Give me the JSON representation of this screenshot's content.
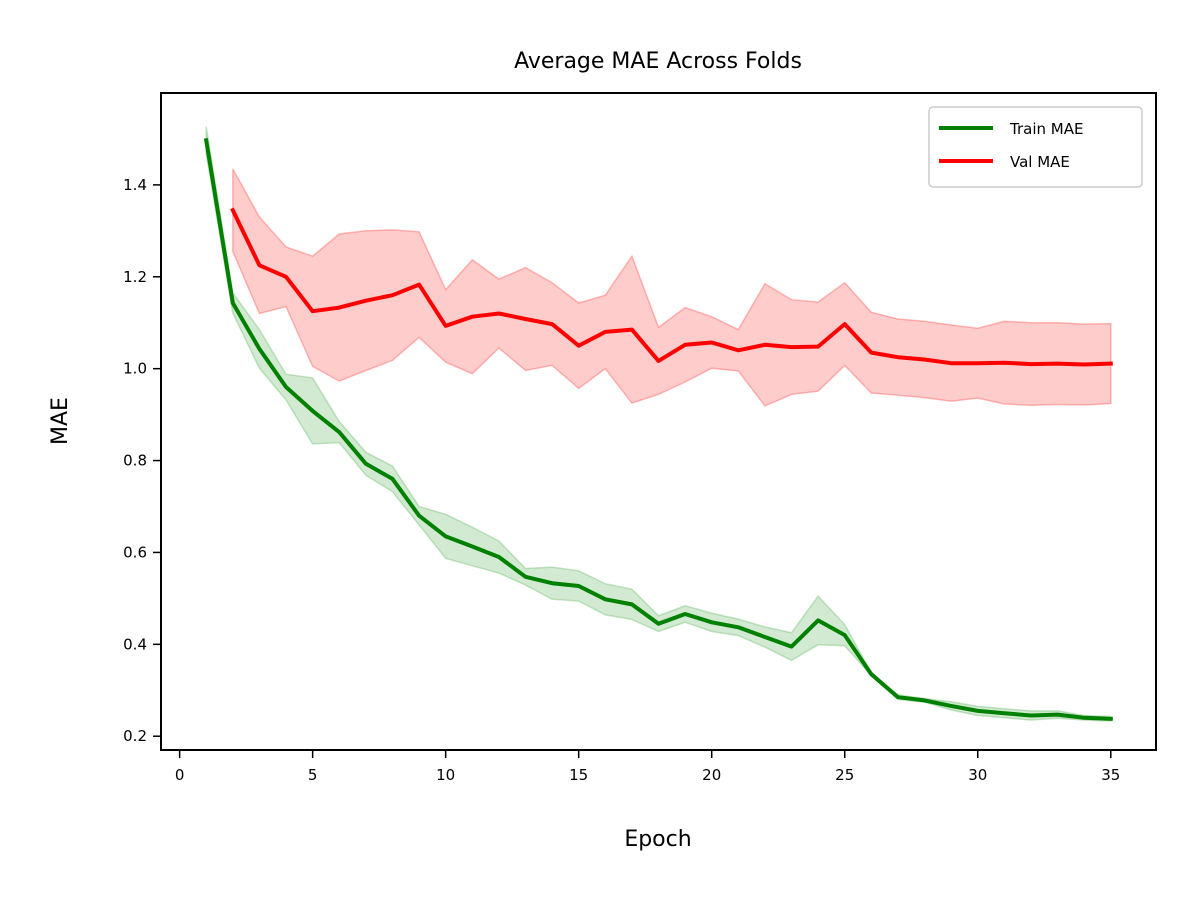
{
  "chart_data": {
    "type": "line",
    "title": "Average MAE Across Folds",
    "xlabel": "Epoch",
    "ylabel": "MAE",
    "xlim": [
      -0.7,
      36.7
    ],
    "ylim": [
      0.17,
      1.6
    ],
    "xticks": [
      0,
      5,
      10,
      15,
      20,
      25,
      30,
      35
    ],
    "yticks": [
      0.2,
      0.4,
      0.6,
      0.8,
      1.0,
      1.2,
      1.4
    ],
    "ytick_labels": [
      "0.2",
      "0.4",
      "0.6",
      "0.8",
      "1.0",
      "1.2",
      "1.4"
    ],
    "grid": false,
    "legend_position": "upper right",
    "series": [
      {
        "name": "Train MAE",
        "color": "#008000",
        "band_color": "#2ca02c",
        "x": [
          1,
          2,
          3,
          4,
          5,
          6,
          7,
          8,
          9,
          10,
          11,
          12,
          13,
          14,
          15,
          16,
          17,
          18,
          19,
          20,
          21,
          22,
          23,
          24,
          25,
          26,
          27,
          28,
          29,
          30,
          31,
          32,
          33,
          34,
          35
        ],
        "values": [
          1.497,
          1.143,
          1.043,
          0.96,
          0.908,
          0.862,
          0.793,
          0.76,
          0.68,
          0.635,
          0.613,
          0.59,
          0.547,
          0.533,
          0.527,
          0.498,
          0.487,
          0.445,
          0.466,
          0.448,
          0.437,
          0.416,
          0.395,
          0.452,
          0.42,
          0.335,
          0.285,
          0.278,
          0.266,
          0.255,
          0.25,
          0.245,
          0.247,
          0.24,
          0.238
        ],
        "upper": [
          1.527,
          1.165,
          1.085,
          0.988,
          0.98,
          0.885,
          0.818,
          0.788,
          0.7,
          0.683,
          0.655,
          0.625,
          0.565,
          0.568,
          0.56,
          0.532,
          0.52,
          0.462,
          0.484,
          0.468,
          0.455,
          0.438,
          0.425,
          0.505,
          0.443,
          0.338,
          0.29,
          0.282,
          0.275,
          0.265,
          0.26,
          0.255,
          0.255,
          0.245,
          0.243
        ],
        "lower": [
          1.467,
          1.121,
          1.001,
          0.932,
          0.836,
          0.839,
          0.768,
          0.732,
          0.66,
          0.587,
          0.571,
          0.555,
          0.529,
          0.498,
          0.494,
          0.464,
          0.454,
          0.428,
          0.448,
          0.428,
          0.419,
          0.394,
          0.365,
          0.399,
          0.397,
          0.332,
          0.28,
          0.274,
          0.257,
          0.245,
          0.24,
          0.235,
          0.239,
          0.235,
          0.233
        ]
      },
      {
        "name": "Val MAE",
        "color": "#ff0000",
        "band_color": "#ff0000",
        "x": [
          2,
          3,
          4,
          5,
          6,
          7,
          8,
          9,
          10,
          11,
          12,
          13,
          14,
          15,
          16,
          17,
          18,
          19,
          20,
          21,
          22,
          23,
          24,
          25,
          26,
          27,
          28,
          29,
          30,
          31,
          32,
          33,
          34,
          35
        ],
        "values": [
          1.345,
          1.225,
          1.2,
          1.125,
          1.133,
          1.148,
          1.16,
          1.183,
          1.093,
          1.113,
          1.12,
          1.108,
          1.097,
          1.05,
          1.08,
          1.085,
          1.017,
          1.052,
          1.057,
          1.04,
          1.052,
          1.047,
          1.048,
          1.097,
          1.035,
          1.025,
          1.02,
          1.012,
          1.012,
          1.013,
          1.01,
          1.011,
          1.009,
          1.011
        ],
        "upper": [
          1.435,
          1.33,
          1.265,
          1.245,
          1.293,
          1.3,
          1.302,
          1.298,
          1.172,
          1.237,
          1.195,
          1.22,
          1.187,
          1.143,
          1.16,
          1.245,
          1.09,
          1.133,
          1.113,
          1.085,
          1.185,
          1.15,
          1.145,
          1.187,
          1.123,
          1.108,
          1.103,
          1.095,
          1.088,
          1.103,
          1.1,
          1.1,
          1.097,
          1.098
        ],
        "lower": [
          1.255,
          1.12,
          1.135,
          1.005,
          0.973,
          0.996,
          1.018,
          1.068,
          1.014,
          0.989,
          1.045,
          0.996,
          1.007,
          0.957,
          1.0,
          0.925,
          0.944,
          0.971,
          1.001,
          0.995,
          0.919,
          0.944,
          0.951,
          1.007,
          0.947,
          0.942,
          0.937,
          0.929,
          0.936,
          0.923,
          0.92,
          0.922,
          0.921,
          0.924
        ]
      }
    ]
  }
}
